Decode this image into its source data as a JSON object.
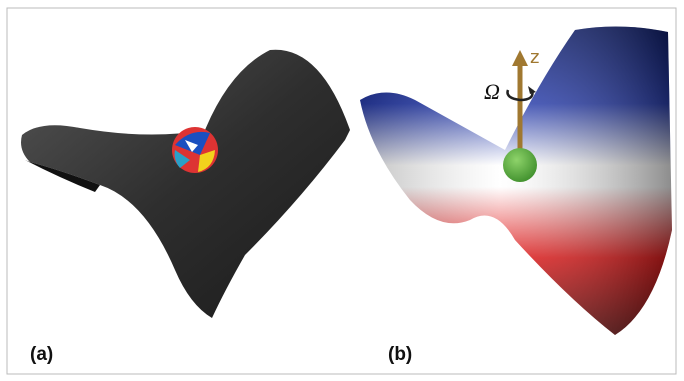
{
  "panels": [
    {
      "label": "(a)"
    },
    {
      "label": "(b)",
      "axis_label": "z",
      "rotation_label": "Ω"
    }
  ]
}
